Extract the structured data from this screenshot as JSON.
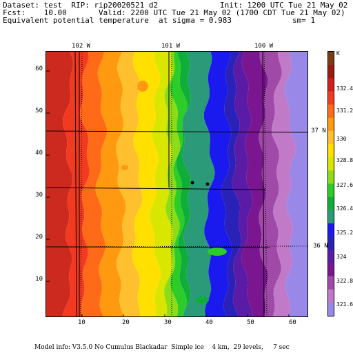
{
  "header": {
    "line1_left": "Dataset: test  RIP: rip20020521 d2",
    "line1_right": "Init: 1200 UTC Tue 21 May 02",
    "line2_left": "Fcst:    10.00",
    "line2_right": "Valid: 2200 UTC Tue 21 May 02 (1700 CDT Tue 21 May 02)",
    "line3_left": "Equivalent potential temperature",
    "line3_mid": "at sigma = 0.983",
    "line3_right": "sm= 1"
  },
  "map": {
    "x_ticks": [
      "10",
      "20",
      "30",
      "40",
      "50",
      "60"
    ],
    "y_ticks": [
      "10",
      "20",
      "30",
      "40",
      "50",
      "60"
    ],
    "longitude_labels": [
      "102 W",
      "101 W",
      "100 W"
    ],
    "latitude_labels": [
      "37 N",
      "36 N"
    ],
    "field_palette": [
      "#cc2a1e",
      "#f23a20",
      "#ff6a18",
      "#ff9a10",
      "#ffc030",
      "#ffe000",
      "#d8e600",
      "#8edc18",
      "#2ecc28",
      "#0fae3a",
      "#2a9a78",
      "#1a1aee",
      "#2a22b8",
      "#5a1ca6",
      "#7a1690",
      "#a04aa8",
      "#c07ac8",
      "#9a88e8"
    ]
  },
  "colorbar": {
    "unit_label": "K",
    "labels": [
      "332.4",
      "331.2",
      "330",
      "328.8",
      "327.6",
      "326.4",
      "325.2",
      "324",
      "322.8",
      "321.6"
    ],
    "colors": [
      "#7a3e16",
      "#9a1a14",
      "#d01e1e",
      "#f23a20",
      "#ff6a18",
      "#ff9a10",
      "#ffc030",
      "#ffe000",
      "#d8e600",
      "#8edc18",
      "#2ecc28",
      "#0fae3a",
      "#2a9a78",
      "#1a1aee",
      "#2a22b8",
      "#5a1ca6",
      "#7a1690",
      "#a04aa8",
      "#c07ac8",
      "#9a88e8"
    ]
  },
  "footer": {
    "model_info": "Model info: V3.5.0 No Cumulus Blackadar  Simple ice    4 km,  29 levels,     7 sec"
  }
}
